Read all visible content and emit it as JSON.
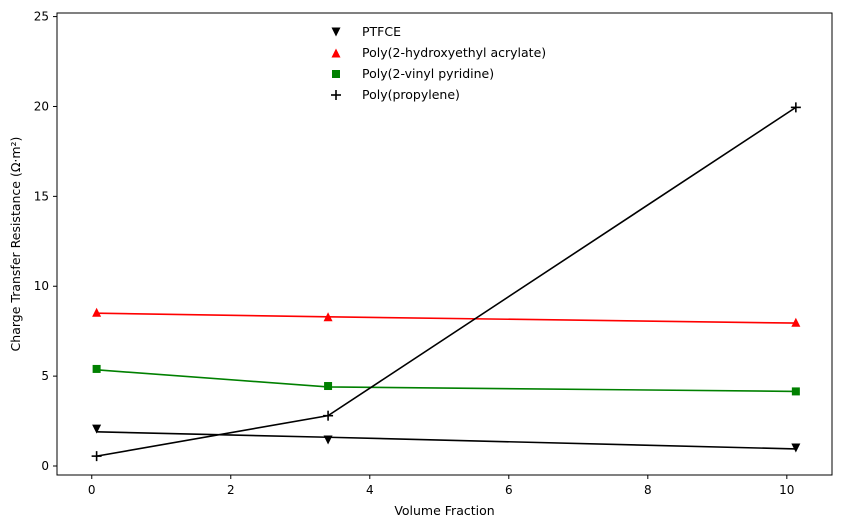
{
  "chart_data": {
    "type": "scatter",
    "xlabel": "Volume Fraction",
    "ylabel": "Charge Transfer Resistance (Ω·m²)",
    "xlim": [
      -0.5,
      10.65
    ],
    "ylim": [
      -0.5,
      25.2
    ],
    "xticks": [
      0,
      2,
      4,
      6,
      8,
      10
    ],
    "yticks": [
      0,
      5,
      10,
      15,
      20,
      25
    ],
    "grid": false,
    "legend_position": "top-center",
    "series": [
      {
        "name": "PTFCE",
        "color": "#000000",
        "marker": "triangle-down",
        "points": [
          [
            0.07,
            2.05
          ],
          [
            3.4,
            1.45
          ],
          [
            10.13,
            1.0
          ]
        ],
        "fit_line": [
          [
            0.07,
            1.9
          ],
          [
            3.4,
            1.6
          ],
          [
            10.13,
            0.95
          ]
        ]
      },
      {
        "name": "Poly(2-hydroxyethyl acrylate)",
        "color": "#ff0000",
        "marker": "triangle-up",
        "points": [
          [
            0.07,
            8.55
          ],
          [
            3.4,
            8.3
          ],
          [
            10.13,
            8.0
          ]
        ],
        "fit_line": [
          [
            0.07,
            8.5
          ],
          [
            3.4,
            8.3
          ],
          [
            10.13,
            7.95
          ]
        ]
      },
      {
        "name": "Poly(2-vinyl pyridine)",
        "color": "#008000",
        "marker": "square",
        "points": [
          [
            0.07,
            5.4
          ],
          [
            3.4,
            4.45
          ],
          [
            10.13,
            4.15
          ]
        ],
        "fit_line": [
          [
            0.07,
            5.35
          ],
          [
            3.4,
            4.4
          ],
          [
            10.13,
            4.15
          ]
        ]
      },
      {
        "name": "Poly(propylene)",
        "color": "#000000",
        "marker": "plus",
        "points": [
          [
            0.07,
            0.55
          ],
          [
            3.4,
            2.8
          ],
          [
            10.13,
            19.95
          ]
        ],
        "fit_line": [
          [
            0.07,
            0.55
          ],
          [
            3.4,
            2.8
          ],
          [
            10.13,
            19.95
          ]
        ]
      }
    ]
  }
}
